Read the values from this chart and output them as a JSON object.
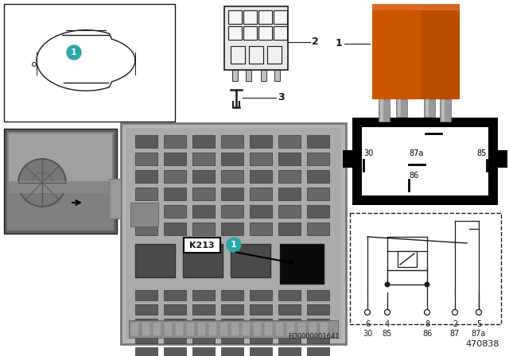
{
  "bg_color": "#ffffff",
  "label_k213": "K213",
  "label_1": "1",
  "pin_labels_top": [
    "6",
    "4",
    "8",
    "2",
    "5"
  ],
  "pin_labels_bottom": [
    "30",
    "85",
    "86",
    "87",
    "87a"
  ],
  "diagram_code": "EO0000001641",
  "figure_number": "470838",
  "orange_color": "#CC5500",
  "teal_color": "#29A8AB",
  "dark_color": "#1a1a1a",
  "gray_color": "#888888",
  "med_gray": "#999999",
  "light_gray": "#d0d0d0",
  "fuse_box_gray": "#b8b8b8",
  "fuse_dark": "#555555",
  "fuse_med": "#666666"
}
